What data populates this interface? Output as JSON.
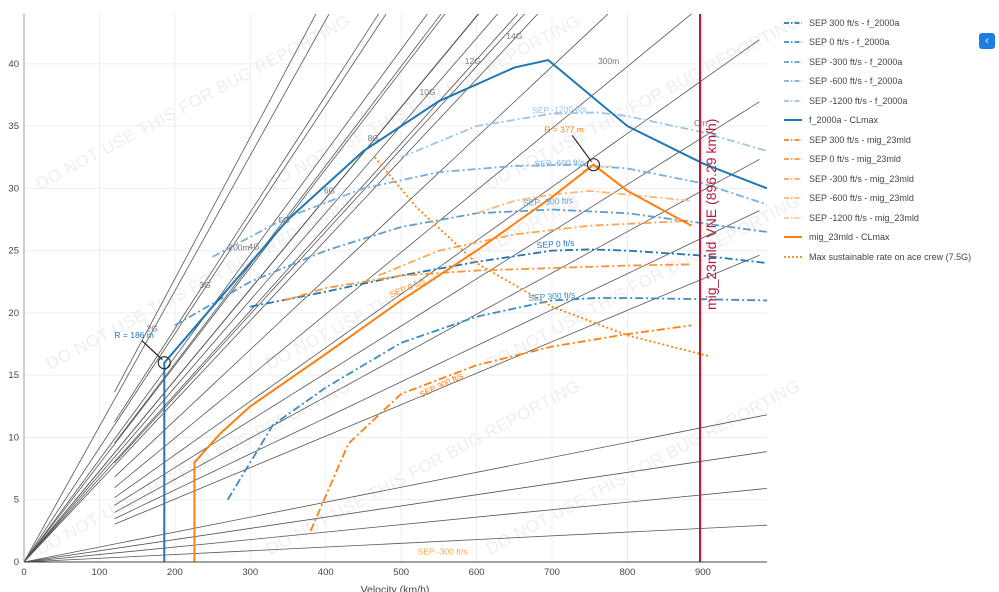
{
  "watermark": "DO NOT USE THIS FOR BUG REPORTING",
  "legend_toggle_icon": "chevron-left-icon",
  "colors": {
    "blue": "#1f77b4",
    "blue_1": "#3d8bc4",
    "blue_2": "#5c9ed0",
    "blue_3": "#7ab0dc",
    "blue_4": "#9dc4e6",
    "orange": "#ff7f0e",
    "orange_1": "#ff9433",
    "orange_2": "#ffa552",
    "orange_3": "#ffb674",
    "orange_4": "#ffc896",
    "vne_line": "#b01e3c",
    "grid_lines": "#555555"
  },
  "chart_data": {
    "type": "line",
    "xlabel": "Velocity (km/h)",
    "ylabel": "",
    "xlim": [
      0,
      985
    ],
    "ylim": [
      0,
      44
    ],
    "xticks": [
      0,
      100,
      200,
      300,
      400,
      500,
      600,
      700,
      800,
      900
    ],
    "yticks": [
      0,
      5,
      10,
      15,
      20,
      25,
      30,
      35,
      40
    ],
    "grid": true,
    "legend_position": "right",
    "series": [
      {
        "name": "SEP 300 ft/s - f_2000a",
        "color_key": "blue",
        "style": "dashdot",
        "x": [
          300,
          400,
          500,
          600,
          700,
          750,
          800,
          900,
          985
        ],
        "y": [
          20.5,
          21.7,
          23.0,
          24.1,
          25.0,
          25.1,
          25.0,
          24.6,
          24.0
        ]
      },
      {
        "name": "SEP 0 ft/s - f_2000a",
        "color_key": "blue_1",
        "style": "dashdot",
        "x": [
          270,
          330,
          400,
          500,
          600,
          700,
          760,
          800,
          900,
          985
        ],
        "y": [
          5.0,
          11.0,
          14.0,
          17.6,
          19.7,
          21.0,
          21.2,
          21.2,
          21.1,
          21.0
        ]
      },
      {
        "name": "SEP -300 ft/s - f_2000a",
        "color_key": "blue_2",
        "style": "dashdot",
        "x": [
          200,
          300,
          400,
          500,
          600,
          700,
          800,
          900,
          985
        ],
        "y": [
          19.0,
          22.5,
          25.0,
          26.9,
          28.0,
          28.3,
          28.0,
          27.2,
          26.5
        ]
      },
      {
        "name": "SEP -600 ft/s - f_2000a",
        "color_key": "blue_3",
        "style": "dashdot",
        "x": [
          250,
          350,
          450,
          550,
          650,
          730,
          800,
          900,
          985
        ],
        "y": [
          24.5,
          27.7,
          30.0,
          31.3,
          31.8,
          31.9,
          31.6,
          30.4,
          28.7
        ]
      },
      {
        "name": "SEP -1200 ft/s - f_2000a",
        "color_key": "blue_4",
        "style": "dashdot",
        "x": [
          500,
          600,
          700,
          760,
          800,
          900,
          985
        ],
        "y": [
          32.5,
          35.0,
          36.0,
          36.1,
          35.8,
          34.5,
          33.0
        ]
      },
      {
        "name": "f_2000a - CLmax",
        "color_key": "blue",
        "style": "solid",
        "x": [
          186,
          186,
          186,
          250,
          350,
          450,
          550,
          650,
          695,
          800,
          900,
          985
        ],
        "y": [
          0,
          10,
          16.0,
          20.5,
          27.5,
          33.0,
          37.0,
          39.7,
          40.3,
          35.0,
          32.0,
          30.0
        ]
      },
      {
        "name": "SEP 300 ft/s - mig_23mld",
        "color_key": "orange",
        "style": "dashdot",
        "x": [
          380,
          430,
          500,
          600,
          700,
          800,
          885
        ],
        "y": [
          2.5,
          9.5,
          13.5,
          15.8,
          17.3,
          18.3,
          19.0
        ]
      },
      {
        "name": "SEP 0 ft/s - mig_23mld",
        "color_key": "orange_1",
        "style": "dashdot",
        "x": [
          345,
          400,
          500,
          600,
          700,
          800,
          885
        ],
        "y": [
          21.0,
          22.0,
          23.0,
          23.4,
          23.6,
          23.8,
          23.9
        ]
      },
      {
        "name": "SEP -300 ft/s - mig_23mld",
        "color_key": "orange_2",
        "style": "dashdot",
        "x": [
          470,
          550,
          650,
          750,
          850,
          885
        ],
        "y": [
          23.0,
          25.0,
          26.3,
          27.0,
          27.3,
          27.4
        ]
      },
      {
        "name": "SEP -600 ft/s - mig_23mld",
        "color_key": "orange_3",
        "style": "dashdot",
        "x": [
          600,
          650,
          700,
          750,
          800,
          885
        ],
        "y": [
          28.0,
          29.0,
          29.5,
          29.8,
          29.5,
          29.0
        ]
      },
      {
        "name": "SEP -1200 ft/s - mig_23mld",
        "color_key": "orange_4",
        "style": "dashdot",
        "x": [
          740,
          760,
          780
        ],
        "y": [
          31.4,
          31.7,
          31.8
        ]
      },
      {
        "name": "mig_23mld - CLmax",
        "color_key": "orange",
        "style": "solid",
        "x": [
          226,
          226,
          226,
          260,
          300,
          400,
          500,
          600,
          700,
          755,
          800,
          885
        ],
        "y": [
          0,
          5,
          8.0,
          10.3,
          12.5,
          16.7,
          21.0,
          25.0,
          29.3,
          31.9,
          29.8,
          27.0
        ]
      },
      {
        "name": "Max sustainable rate on ace crew (7.5G)",
        "color_key": "orange",
        "style": "dotted",
        "x": [
          465,
          520,
          600,
          700,
          800,
          910
        ],
        "y": [
          32.5,
          28.5,
          24.0,
          20.5,
          18.2,
          16.5
        ]
      }
    ],
    "vne": {
      "label": "mig_23mld VNE (896.29 km/h)",
      "x": 896.29
    },
    "g_lines": {
      "labels": [
        "2G",
        "3G",
        "4G",
        "5G",
        "6G",
        "8G",
        "10G",
        "12G",
        "14G"
      ],
      "label_x": [
        170,
        240,
        305,
        345,
        405,
        463,
        535,
        595,
        650
      ],
      "label_y": [
        18.5,
        22.0,
        25.1,
        27.2,
        29.6,
        33.8,
        37.5,
        40.0,
        42.0
      ]
    },
    "radius_labels": [
      {
        "text": "200m",
        "x": 285,
        "y": 25.0
      },
      {
        "text": "300m",
        "x": 775,
        "y": 40.0
      },
      {
        "text": "Cm",
        "x": 897,
        "y": 35.0
      }
    ],
    "annotations": [
      {
        "text": "R = 186 m",
        "x": 146,
        "y": 18.0,
        "color_key": "blue",
        "point_x": 186,
        "point_y": 16.0
      },
      {
        "text": "R = 377 m",
        "x": 716,
        "y": 34.5,
        "color_key": "orange",
        "point_x": 755,
        "point_y": 31.9
      }
    ],
    "sep_labels": [
      {
        "text": "SEP -1200 ft/s",
        "x": 710,
        "y": 36.1,
        "color_key": "blue_4",
        "angle": -2
      },
      {
        "text": "SEP -600 ft/s",
        "x": 710,
        "y": 31.8,
        "color_key": "blue_3",
        "angle": -2
      },
      {
        "text": "SEP -300 ft/s",
        "x": 695,
        "y": 28.7,
        "color_key": "blue_2",
        "angle": -3
      },
      {
        "text": "SEP 0 ft/s",
        "x": 705,
        "y": 25.3,
        "color_key": "blue",
        "angle": -4
      },
      {
        "text": "SEP 300 ft/s",
        "x": 700,
        "y": 21.1,
        "color_key": "blue_1",
        "angle": -4
      },
      {
        "text": "SEP 0 ft/s",
        "x": 510,
        "y": 21.8,
        "color_key": "orange_1",
        "angle": -22
      },
      {
        "text": "SEP 300 ft/s",
        "x": 555,
        "y": 14.0,
        "color_key": "orange",
        "angle": -25
      },
      {
        "text": "SEP -300 ft/s",
        "x": 555,
        "y": 0.6,
        "color_key": "orange_2",
        "angle": 0
      }
    ]
  }
}
